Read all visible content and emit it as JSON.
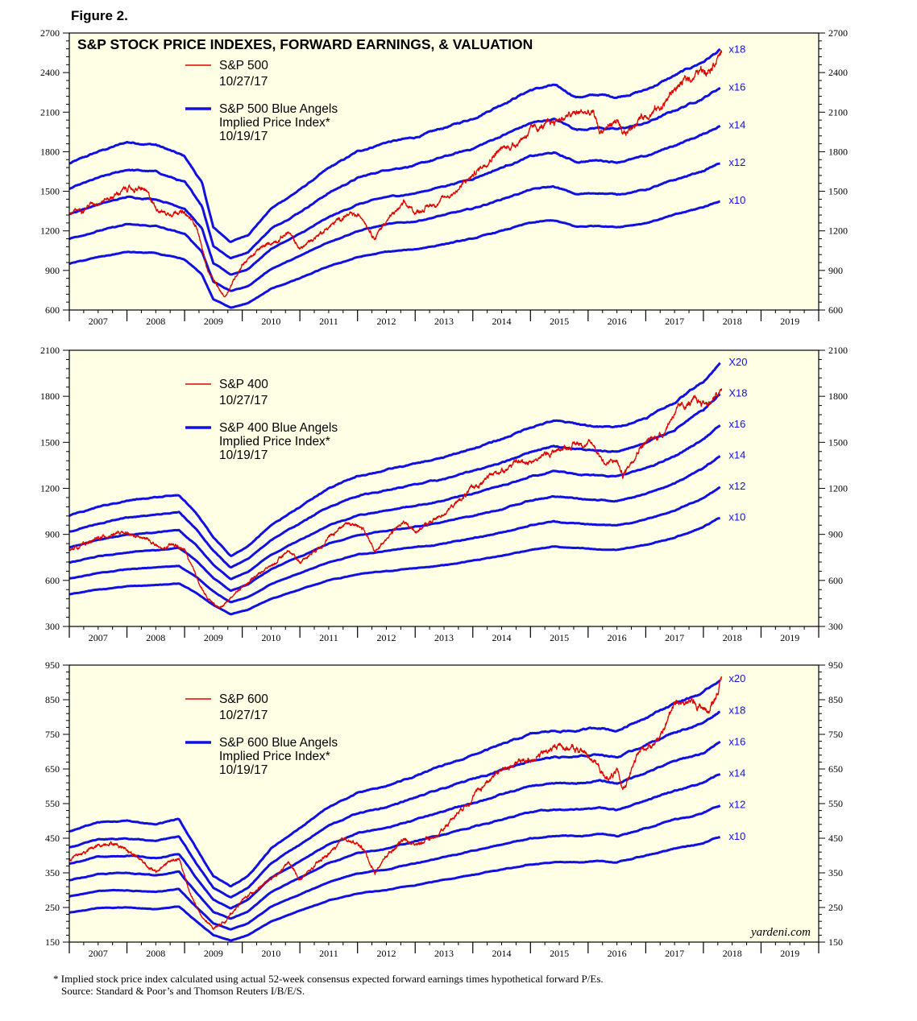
{
  "figure_title": "Figure 2.",
  "footnote": {
    "line1": "* Implied stock price index calculated using actual 52-week consensus expected forward earnings times hypothetical forward P/Es.",
    "line2": "Source: Standard & Poor’s and Thomson Reuters I/B/E/S."
  },
  "watermark": "yardeni.com",
  "colors": {
    "background": "#FFFFE6",
    "blue": "#1010E0",
    "red": "#E00000",
    "frame": "#000000"
  },
  "chart_data": [
    {
      "type": "line",
      "title": "S&P STOCK PRICE INDEXES, FORWARD EARNINGS, & VALUATION",
      "x_ticks": [
        "2007",
        "2008",
        "2009",
        "2010",
        "2011",
        "2012",
        "2013",
        "2014",
        "2015",
        "2016",
        "2017",
        "2018",
        "2019"
      ],
      "xlim": [
        2006.5,
        2019.5
      ],
      "ylim": [
        600,
        2700
      ],
      "y_ticks": [
        600,
        900,
        1200,
        1500,
        1800,
        2100,
        2400,
        2700
      ],
      "legend": [
        {
          "name": "S&P 500",
          "date": "10/27/17",
          "color": "red"
        },
        {
          "name": "S&P 500 Blue Angels",
          "name2": "Implied Price Index*",
          "date": "10/19/17",
          "color": "blue"
        }
      ],
      "multiple_labels": [
        "x18",
        "x16",
        "x14",
        "x12",
        "x10"
      ],
      "multiples": [
        18,
        16,
        14,
        12,
        10
      ],
      "earnings_x": [
        2006.5,
        2007.0,
        2007.5,
        2008.0,
        2008.5,
        2008.8,
        2009.0,
        2009.3,
        2009.6,
        2010.0,
        2010.5,
        2011.0,
        2011.5,
        2012.0,
        2012.5,
        2013.0,
        2013.5,
        2014.0,
        2014.5,
        2014.9,
        2015.3,
        2015.7,
        2016.0,
        2016.5,
        2017.0,
        2017.5,
        2017.8
      ],
      "earnings": [
        95,
        100,
        104,
        103,
        98,
        87,
        68,
        62,
        65,
        76,
        84,
        93,
        100,
        104,
        106,
        110,
        114,
        120,
        126,
        128,
        123,
        124,
        123,
        126,
        132,
        138,
        143
      ],
      "price_x": [
        2006.5,
        2006.9,
        2007.2,
        2007.5,
        2007.8,
        2008.0,
        2008.2,
        2008.4,
        2008.7,
        2008.9,
        2009.1,
        2009.2,
        2009.5,
        2009.8,
        2010.1,
        2010.3,
        2010.5,
        2010.9,
        2011.3,
        2011.6,
        2011.8,
        2012.0,
        2012.3,
        2012.5,
        2012.9,
        2013.2,
        2013.5,
        2013.9,
        2014.2,
        2014.5,
        2014.8,
        2015.0,
        2015.4,
        2015.6,
        2015.7,
        2016.0,
        2016.1,
        2016.4,
        2016.8,
        2017.0,
        2017.3,
        2017.6,
        2017.82
      ],
      "price": [
        1320,
        1410,
        1450,
        1520,
        1510,
        1380,
        1330,
        1360,
        1250,
        900,
        750,
        700,
        950,
        1060,
        1130,
        1190,
        1060,
        1200,
        1320,
        1300,
        1150,
        1280,
        1400,
        1340,
        1420,
        1500,
        1620,
        1800,
        1850,
        1960,
        2000,
        2050,
        2100,
        2080,
        1950,
        2040,
        1900,
        2060,
        2150,
        2280,
        2370,
        2450,
        2570
      ]
    },
    {
      "type": "line",
      "title": "",
      "x_ticks": [
        "2007",
        "2008",
        "2009",
        "2010",
        "2011",
        "2012",
        "2013",
        "2014",
        "2015",
        "2016",
        "2017",
        "2018",
        "2019"
      ],
      "xlim": [
        2006.5,
        2019.5
      ],
      "ylim": [
        300,
        2100
      ],
      "y_ticks": [
        300,
        600,
        900,
        1200,
        1500,
        1800,
        2100
      ],
      "legend": [
        {
          "name": "S&P 400",
          "date": "10/27/17",
          "color": "red"
        },
        {
          "name": "S&P 400 Blue Angels",
          "name2": "Implied Price Index*",
          "date": "10/19/17",
          "color": "blue"
        }
      ],
      "multiple_labels": [
        "X20",
        "X18",
        "x16",
        "x14",
        "x12",
        "x10"
      ],
      "multiples": [
        20,
        18,
        16,
        14,
        12,
        10
      ],
      "earnings_x": [
        2006.5,
        2007.0,
        2007.5,
        2008.0,
        2008.4,
        2008.7,
        2009.0,
        2009.3,
        2009.6,
        2010.0,
        2010.5,
        2011.0,
        2011.5,
        2012.0,
        2012.5,
        2013.0,
        2013.5,
        2014.0,
        2014.5,
        2014.9,
        2015.3,
        2015.7,
        2016.0,
        2016.5,
        2017.0,
        2017.5,
        2017.8
      ],
      "earnings": [
        51,
        54,
        56,
        57,
        58,
        52,
        44,
        38,
        41,
        48,
        54,
        60,
        64,
        66,
        68,
        70,
        73,
        76,
        80,
        82,
        81,
        80,
        80,
        83,
        88,
        95,
        101
      ],
      "price_x": [
        2006.5,
        2006.9,
        2007.3,
        2007.6,
        2007.9,
        2008.1,
        2008.3,
        2008.5,
        2008.7,
        2008.9,
        2009.1,
        2009.2,
        2009.5,
        2009.8,
        2010.1,
        2010.3,
        2010.5,
        2010.9,
        2011.3,
        2011.6,
        2011.8,
        2012.0,
        2012.3,
        2012.5,
        2012.9,
        2013.2,
        2013.5,
        2013.9,
        2014.2,
        2014.5,
        2014.8,
        2015.0,
        2015.4,
        2015.6,
        2015.8,
        2016.0,
        2016.1,
        2016.4,
        2016.8,
        2017.0,
        2017.3,
        2017.6,
        2017.82
      ],
      "price": [
        800,
        860,
        910,
        890,
        860,
        800,
        830,
        800,
        620,
        480,
        420,
        450,
        560,
        650,
        720,
        800,
        720,
        840,
        980,
        940,
        780,
        880,
        980,
        920,
        1010,
        1100,
        1200,
        1300,
        1360,
        1380,
        1420,
        1460,
        1500,
        1480,
        1360,
        1380,
        1280,
        1480,
        1560,
        1700,
        1760,
        1760,
        1830
      ]
    },
    {
      "type": "line",
      "title": "",
      "x_ticks": [
        "2007",
        "2008",
        "2009",
        "2010",
        "2011",
        "2012",
        "2013",
        "2014",
        "2015",
        "2016",
        "2017",
        "2018",
        "2019"
      ],
      "xlim": [
        2006.5,
        2019.5
      ],
      "ylim": [
        150,
        950
      ],
      "y_ticks": [
        150,
        250,
        350,
        450,
        550,
        650,
        750,
        850,
        950
      ],
      "legend": [
        {
          "name": "S&P 600",
          "date": "10/27/17",
          "color": "red"
        },
        {
          "name": "S&P 600 Blue Angels",
          "name2": "Implied Price Index*",
          "date": "10/19/17",
          "color": "blue"
        }
      ],
      "multiple_labels": [
        "x20",
        "x18",
        "x16",
        "x14",
        "x12",
        "x10"
      ],
      "multiples": [
        20,
        18,
        16,
        14,
        12,
        10
      ],
      "earnings_x": [
        2006.5,
        2007.0,
        2007.5,
        2008.0,
        2008.4,
        2008.7,
        2009.0,
        2009.3,
        2009.6,
        2010.0,
        2010.5,
        2011.0,
        2011.5,
        2012.0,
        2012.5,
        2013.0,
        2013.5,
        2014.0,
        2014.5,
        2014.9,
        2015.3,
        2015.7,
        2016.0,
        2016.5,
        2017.0,
        2017.5,
        2017.8
      ],
      "earnings": [
        23.5,
        24.8,
        25.0,
        24.5,
        25.3,
        21,
        17,
        15.5,
        17,
        21,
        24,
        27,
        29,
        30,
        31.5,
        33,
        34.5,
        36,
        37.5,
        38,
        38,
        38.5,
        38,
        40,
        42,
        43.5,
        45.5
      ],
      "price_x": [
        2006.5,
        2006.9,
        2007.2,
        2007.5,
        2007.8,
        2008.0,
        2008.2,
        2008.4,
        2008.6,
        2008.8,
        2009.0,
        2009.2,
        2009.5,
        2009.8,
        2010.1,
        2010.3,
        2010.5,
        2010.9,
        2011.3,
        2011.6,
        2011.8,
        2012.0,
        2012.3,
        2012.5,
        2012.9,
        2013.2,
        2013.5,
        2013.9,
        2014.2,
        2014.5,
        2014.8,
        2015.0,
        2015.4,
        2015.6,
        2015.8,
        2016.0,
        2016.1,
        2016.4,
        2016.8,
        2017.0,
        2017.3,
        2017.6,
        2017.82
      ],
      "price": [
        390,
        420,
        440,
        420,
        380,
        350,
        380,
        390,
        290,
        220,
        190,
        210,
        270,
        310,
        340,
        380,
        330,
        390,
        450,
        420,
        350,
        400,
        450,
        430,
        460,
        520,
        570,
        640,
        660,
        680,
        700,
        720,
        700,
        680,
        620,
        640,
        590,
        700,
        750,
        850,
        840,
        820,
        910
      ]
    }
  ]
}
